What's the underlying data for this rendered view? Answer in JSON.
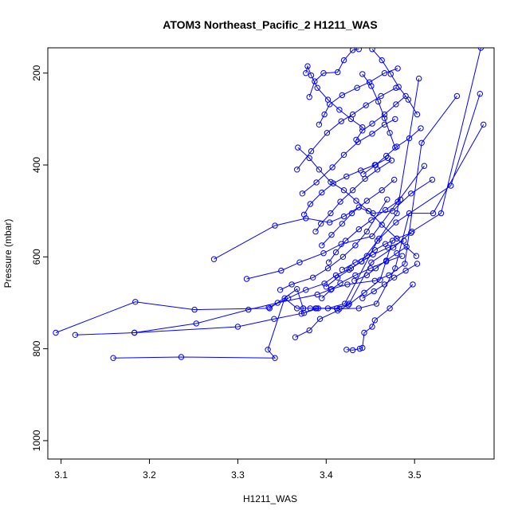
{
  "chart_data": {
    "type": "line",
    "title": "ATOM3 Northeast_Pacific_2 H1211_WAS",
    "xlabel": "H1211_WAS",
    "ylabel": "Pressure (mbar)",
    "xlim": [
      3.085,
      3.59
    ],
    "ylim": [
      1040,
      145
    ],
    "y_reversed": true,
    "x_ticks": [
      3.1,
      3.2,
      3.3,
      3.4,
      3.5
    ],
    "x_tick_labels": [
      "3.1",
      "3.2",
      "3.3",
      "3.4",
      "3.5"
    ],
    "y_ticks": [
      200,
      400,
      600,
      800,
      1000
    ],
    "y_tick_labels": [
      "200",
      "400",
      "600",
      "800",
      "1000"
    ],
    "grid": false,
    "legend": "none",
    "marker": "open-circle",
    "color": "#0000ff",
    "series": [
      {
        "x": [
          3.159,
          3.236,
          3.342,
          3.334,
          3.353,
          3.367,
          3.374,
          3.372,
          3.388,
          3.389,
          3.412,
          3.426,
          3.451,
          3.476,
          3.497,
          3.53,
          3.575
        ],
        "y": [
          820,
          818,
          820,
          802,
          690,
          712,
          712,
          724,
          712,
          712,
          712,
          702,
          612,
          580,
          545,
          505,
          145
        ]
      },
      {
        "x": [
          3.094,
          3.184,
          3.251,
          3.336,
          3.367,
          3.374,
          3.382,
          3.402,
          3.421,
          3.458,
          3.479,
          3.541,
          3.574
        ],
        "y": [
          765,
          698,
          715,
          712,
          670,
          712,
          712,
          712,
          702,
          565,
          525,
          445,
          245
        ]
      },
      {
        "x": [
          3.116,
          3.183,
          3.3,
          3.341,
          3.375,
          3.391,
          3.415,
          3.437,
          3.457,
          3.478,
          3.494,
          3.521,
          3.578
        ],
        "y": [
          770,
          765,
          752,
          735,
          722,
          712,
          713,
          712,
          702,
          625,
          505,
          505,
          312
        ]
      },
      {
        "x": [
          3.183,
          3.253,
          3.312,
          3.345,
          3.39,
          3.406,
          3.424,
          3.455,
          3.471,
          3.489,
          3.508,
          3.548
        ],
        "y": [
          765,
          745,
          715,
          700,
          682,
          670,
          660,
          652,
          640,
          615,
          352,
          250
        ]
      },
      {
        "x": [
          3.273,
          3.342,
          3.377,
          3.404,
          3.42,
          3.437,
          3.453,
          3.475,
          3.496,
          3.52
        ],
        "y": [
          605,
          532,
          516,
          525,
          512,
          492,
          505,
          500,
          462,
          432
        ]
      },
      {
        "x": [
          3.31,
          3.349,
          3.37,
          3.397,
          3.417,
          3.452,
          3.481,
          3.511
        ],
        "y": [
          648,
          630,
          612,
          592,
          572,
          555,
          480,
          402
        ]
      },
      {
        "x": [
          3.335,
          3.357,
          3.377,
          3.398,
          3.411,
          3.428,
          3.44,
          3.46,
          3.48,
          3.505
        ],
        "y": [
          710,
          690,
          672,
          658,
          640,
          625,
          610,
          560,
          505,
          212
        ]
      },
      {
        "x": [
          3.348,
          3.361,
          3.385,
          3.402,
          3.419,
          3.433,
          3.446,
          3.469
        ],
        "y": [
          672,
          660,
          645,
          625,
          600,
          575,
          545,
          475
        ]
      },
      {
        "x": [
          3.365,
          3.381,
          3.393,
          3.413,
          3.425,
          3.443,
          3.461,
          3.475
        ],
        "y": [
          775,
          760,
          735,
          717,
          705,
          678,
          650,
          565
        ]
      },
      {
        "x": [
          3.423,
          3.43,
          3.438,
          3.441,
          3.443,
          3.452,
          3.455,
          3.472,
          3.498
        ],
        "y": [
          802,
          803,
          800,
          798,
          765,
          752,
          738,
          712,
          660
        ]
      },
      {
        "x": [
          3.368,
          3.381,
          3.392,
          3.405,
          3.42,
          3.434,
          3.448,
          3.463,
          3.48,
          3.502
        ],
        "y": [
          362,
          385,
          410,
          437,
          455,
          478,
          500,
          530,
          560,
          598
        ]
      },
      {
        "x": [
          3.367,
          3.383,
          3.401,
          3.417,
          3.43,
          3.445,
          3.462,
          3.479
        ],
        "y": [
          410,
          370,
          330,
          305,
          290,
          270,
          250,
          232
        ]
      },
      {
        "x": [
          3.373,
          3.389,
          3.407,
          3.42,
          3.436,
          3.452,
          3.466,
          3.478
        ],
        "y": [
          462,
          438,
          405,
          378,
          350,
          332,
          312,
          300
        ]
      },
      {
        "x": [
          3.375,
          3.382,
          3.395,
          3.408,
          3.423,
          3.439,
          3.455,
          3.47
        ],
        "y": [
          508,
          485,
          460,
          440,
          425,
          412,
          400,
          385
        ]
      },
      {
        "x": [
          3.388,
          3.394,
          3.405,
          3.416,
          3.43,
          3.444,
          3.458,
          3.474
        ],
        "y": [
          545,
          528,
          505,
          480,
          455,
          430,
          410,
          390
        ]
      },
      {
        "x": [
          3.377,
          3.379,
          3.383,
          3.39,
          3.402,
          3.415,
          3.428,
          3.441
        ],
        "y": [
          200,
          185,
          205,
          232,
          258,
          280,
          300,
          318
        ]
      },
      {
        "x": [
          3.381,
          3.387,
          3.397,
          3.413,
          3.42,
          3.43,
          3.437
        ],
        "y": [
          252,
          218,
          200,
          198,
          172,
          150,
          148
        ]
      },
      {
        "x": [
          3.392,
          3.398,
          3.404,
          3.418,
          3.435,
          3.449,
          3.466,
          3.481
        ],
        "y": [
          312,
          290,
          268,
          248,
          232,
          220,
          200,
          190
        ]
      },
      {
        "x": [
          3.395,
          3.406,
          3.418,
          3.429,
          3.446,
          3.463,
          3.477
        ],
        "y": [
          575,
          552,
          528,
          505,
          478,
          455,
          432
        ]
      },
      {
        "x": [
          3.403,
          3.411,
          3.422,
          3.437,
          3.451,
          3.467,
          3.484
        ],
        "y": [
          612,
          590,
          565,
          540,
          520,
          498,
          475
        ]
      },
      {
        "x": [
          3.4,
          3.413,
          3.426,
          3.44,
          3.453,
          3.47,
          3.488
        ],
        "y": [
          665,
          645,
          628,
          610,
          595,
          580,
          565
        ]
      },
      {
        "x": [
          3.395,
          3.405,
          3.416,
          3.433,
          3.45,
          3.468,
          3.486
        ],
        "y": [
          690,
          672,
          657,
          640,
          625,
          610,
          598
        ]
      },
      {
        "x": [
          3.418,
          3.433,
          3.446,
          3.455,
          3.467,
          3.48,
          3.496
        ],
        "y": [
          628,
          612,
          598,
          585,
          572,
          560,
          548
        ]
      },
      {
        "x": [
          3.432,
          3.446,
          3.456,
          3.468,
          3.48,
          3.491
        ],
        "y": [
          652,
          640,
          625,
          608,
          592,
          578
        ]
      },
      {
        "x": [
          3.441,
          3.454,
          3.466,
          3.477,
          3.49,
          3.503
        ],
        "y": [
          690,
          675,
          660,
          645,
          630,
          615
        ]
      },
      {
        "x": [
          3.434,
          3.441,
          3.452,
          3.466,
          3.479,
          3.49
        ],
        "y": [
          345,
          325,
          310,
          290,
          268,
          250
        ]
      },
      {
        "x": [
          3.442,
          3.456,
          3.468,
          3.48,
          3.494,
          3.507
        ],
        "y": [
          420,
          400,
          380,
          360,
          342,
          320
        ]
      },
      {
        "x": [
          3.441,
          3.451,
          3.459,
          3.466,
          3.472,
          3.478
        ],
        "y": [
          202,
          228,
          262,
          298,
          330,
          362
        ]
      },
      {
        "x": [
          3.452,
          3.463,
          3.473,
          3.482,
          3.493,
          3.503
        ],
        "y": [
          148,
          172,
          202,
          230,
          258,
          290
        ]
      }
    ]
  }
}
